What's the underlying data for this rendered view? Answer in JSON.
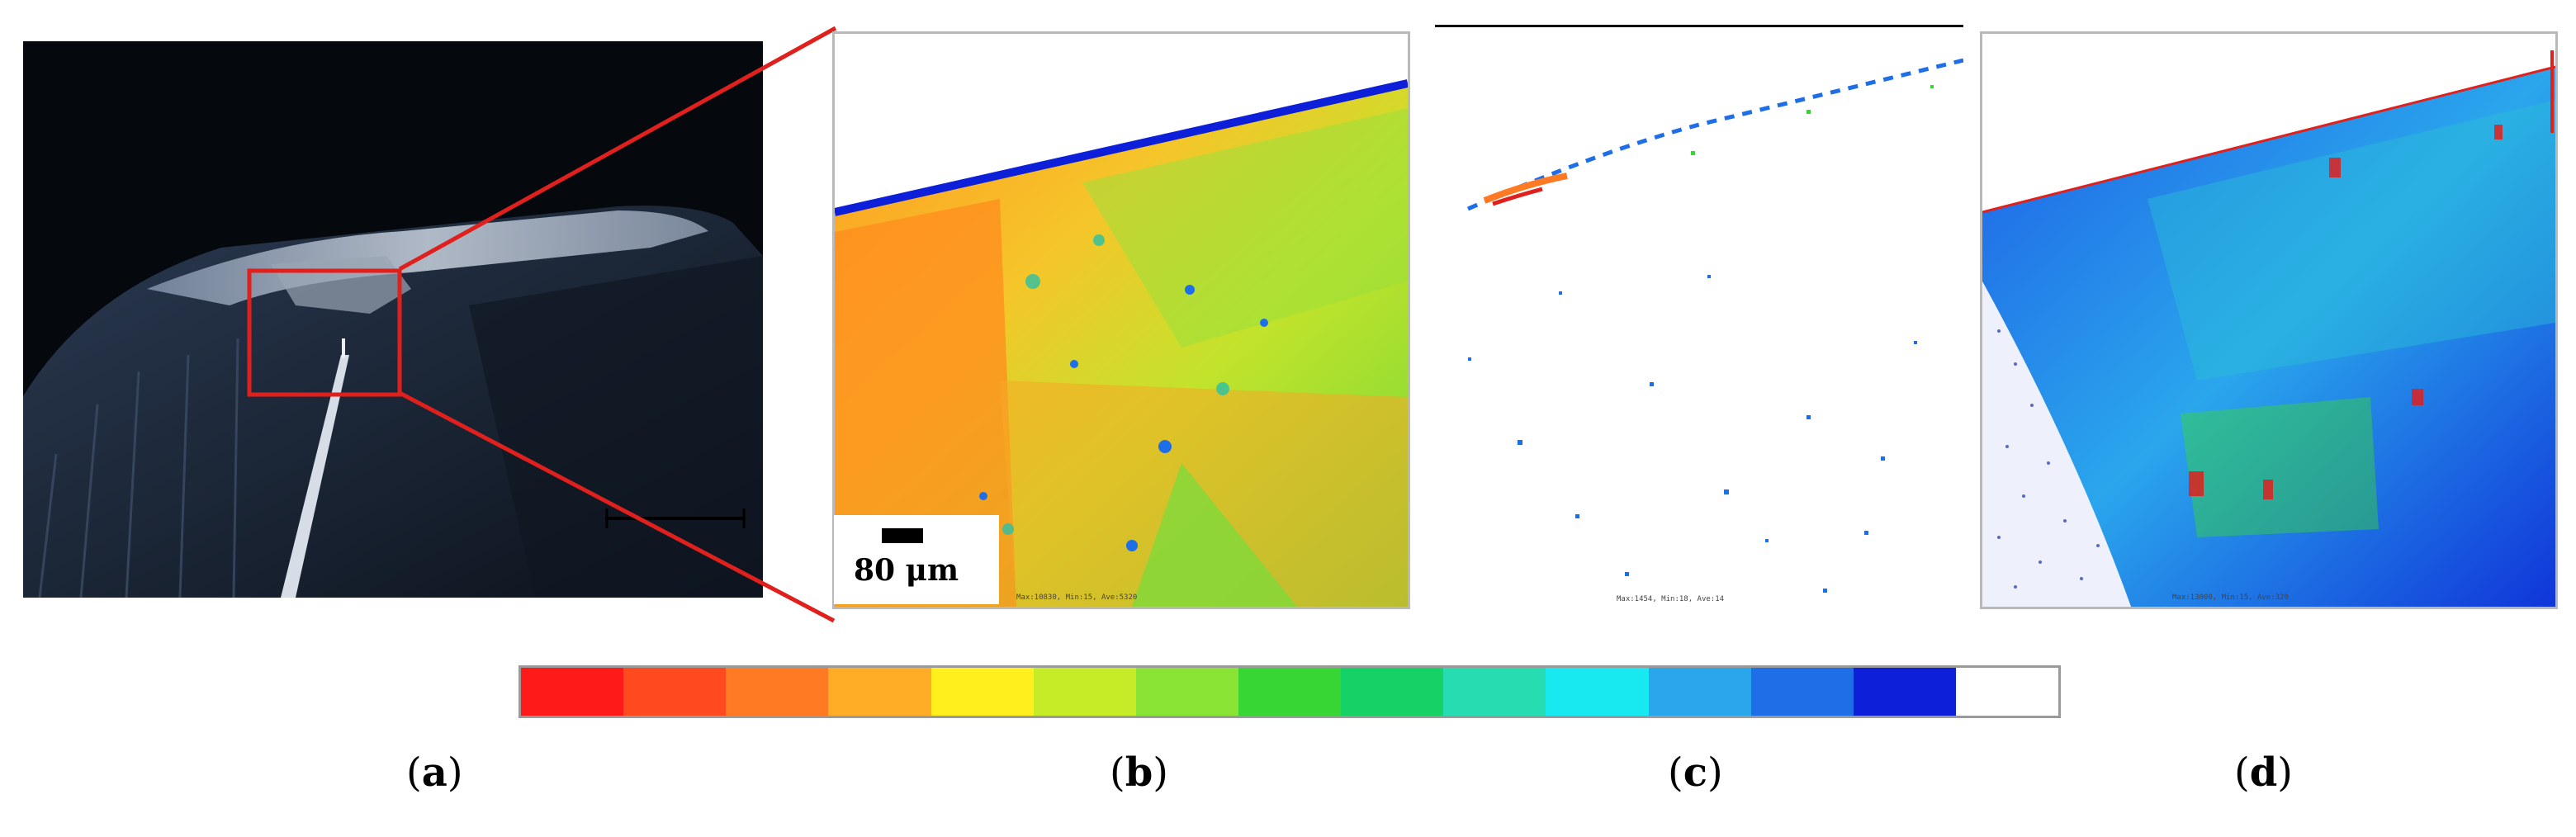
{
  "figure": {
    "scale_bar_label": "80 μm",
    "panel_labels": [
      "a",
      "b",
      "c",
      "d"
    ],
    "map_footers": {
      "b": "Max:10830, Min:15, Ave:5320",
      "c": "Max:1454, Min:18, Ave:14",
      "d": "Max:13000, Min:15, Ave:320"
    },
    "colorbar": [
      "#ff1a1a",
      "#ff4a1f",
      "#ff7a22",
      "#ffad26",
      "#fff01d",
      "#c6ec28",
      "#89e436",
      "#38d635",
      "#14d266",
      "#28dcb2",
      "#18e8f0",
      "#2aa6ec",
      "#1e6ee8",
      "#0d1fd8",
      "#ffffff"
    ],
    "highlight_color": "#e0201c"
  }
}
